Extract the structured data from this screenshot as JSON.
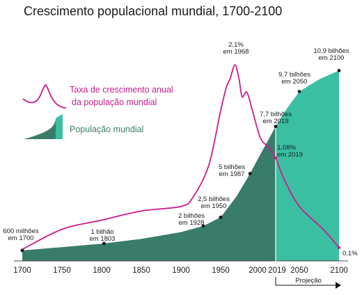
{
  "chart_data": {
    "type": "area",
    "title": "Crescimento populacional mundial, 1700-2100",
    "xlabel": "",
    "ylabel": "",
    "xlim": [
      1700,
      2100
    ],
    "x_ticks": [
      "1700",
      "1750",
      "1800",
      "1850",
      "1900",
      "1950",
      "2000",
      "2019",
      "2050",
      "2100"
    ],
    "projection_label": "Projeção",
    "legend": [
      {
        "name": "Taxa de crescimento anual",
        "name2": "da população mundial",
        "color": "#cc1b8c"
      },
      {
        "name": "População mundial",
        "color": "#3bbfa3"
      }
    ],
    "colors": {
      "historic_area": "#3a7c6a",
      "projection_area": "#3bbfa3",
      "growth_line": "#cc1b8c"
    },
    "series": [
      {
        "name": "População mundial",
        "unit": "bilhões",
        "points": [
          {
            "x": 1700,
            "y": 0.6
          },
          {
            "x": 1750,
            "y": 0.79
          },
          {
            "x": 1803,
            "y": 1.0
          },
          {
            "x": 1850,
            "y": 1.26
          },
          {
            "x": 1900,
            "y": 1.65
          },
          {
            "x": 1928,
            "y": 2.0
          },
          {
            "x": 1950,
            "y": 2.5
          },
          {
            "x": 1970,
            "y": 3.7
          },
          {
            "x": 1987,
            "y": 5.0
          },
          {
            "x": 2000,
            "y": 6.1
          },
          {
            "x": 2019,
            "y": 7.7
          },
          {
            "x": 2030,
            "y": 8.5
          },
          {
            "x": 2050,
            "y": 9.7
          },
          {
            "x": 2075,
            "y": 10.4
          },
          {
            "x": 2100,
            "y": 10.9
          }
        ]
      },
      {
        "name": "Taxa de crescimento anual da população mundial",
        "unit": "%",
        "points": [
          {
            "x": 1700,
            "y": 0.08
          },
          {
            "x": 1750,
            "y": 0.3
          },
          {
            "x": 1800,
            "y": 0.4
          },
          {
            "x": 1850,
            "y": 0.5
          },
          {
            "x": 1900,
            "y": 0.55
          },
          {
            "x": 1915,
            "y": 0.65
          },
          {
            "x": 1935,
            "y": 1.0
          },
          {
            "x": 1950,
            "y": 1.6
          },
          {
            "x": 1957,
            "y": 1.85
          },
          {
            "x": 1962,
            "y": 1.95
          },
          {
            "x": 1968,
            "y": 2.1
          },
          {
            "x": 1973,
            "y": 1.95
          },
          {
            "x": 1977,
            "y": 1.75
          },
          {
            "x": 1983,
            "y": 1.8
          },
          {
            "x": 1990,
            "y": 1.6
          },
          {
            "x": 2000,
            "y": 1.3
          },
          {
            "x": 2010,
            "y": 1.2
          },
          {
            "x": 2019,
            "y": 1.08
          },
          {
            "x": 2030,
            "y": 0.85
          },
          {
            "x": 2050,
            "y": 0.55
          },
          {
            "x": 2080,
            "y": 0.3
          },
          {
            "x": 2100,
            "y": 0.1
          }
        ]
      }
    ],
    "annotations": [
      {
        "line1": "600 milhões",
        "line2": "em 1700",
        "x": 1700,
        "y": 0.6,
        "series": "population"
      },
      {
        "line1": "1 bilhão",
        "line2": "em 1803",
        "x": 1803,
        "y": 1.0,
        "series": "population"
      },
      {
        "line1": "2 bilhões",
        "line2": "em 1928",
        "x": 1928,
        "y": 2.0,
        "series": "population"
      },
      {
        "line1": "2,5 bilhões",
        "line2": "em 1950",
        "x": 1950,
        "y": 2.5,
        "series": "population"
      },
      {
        "line1": "5 bilhões",
        "line2": "em 1987",
        "x": 1987,
        "y": 5.0,
        "series": "population"
      },
      {
        "line1": "7,7 bilhões",
        "line2": "em 2019",
        "x": 2019,
        "y": 7.7,
        "series": "population"
      },
      {
        "line1": "9,7 bilhões",
        "line2": "em 2050",
        "x": 2050,
        "y": 9.7,
        "series": "population"
      },
      {
        "line1": "10,9 bilhões",
        "line2": "em 2100",
        "x": 2100,
        "y": 10.9,
        "series": "population"
      },
      {
        "line1": "2,1%",
        "line2": "em 1968",
        "x": 1968,
        "y": 2.1,
        "series": "growth"
      },
      {
        "line1": "1,08%",
        "line2": "em 2019",
        "x": 2019,
        "y": 1.08,
        "series": "growth"
      },
      {
        "line1": "0,1%",
        "line2": "",
        "x": 2100,
        "y": 0.1,
        "series": "growth"
      }
    ]
  }
}
